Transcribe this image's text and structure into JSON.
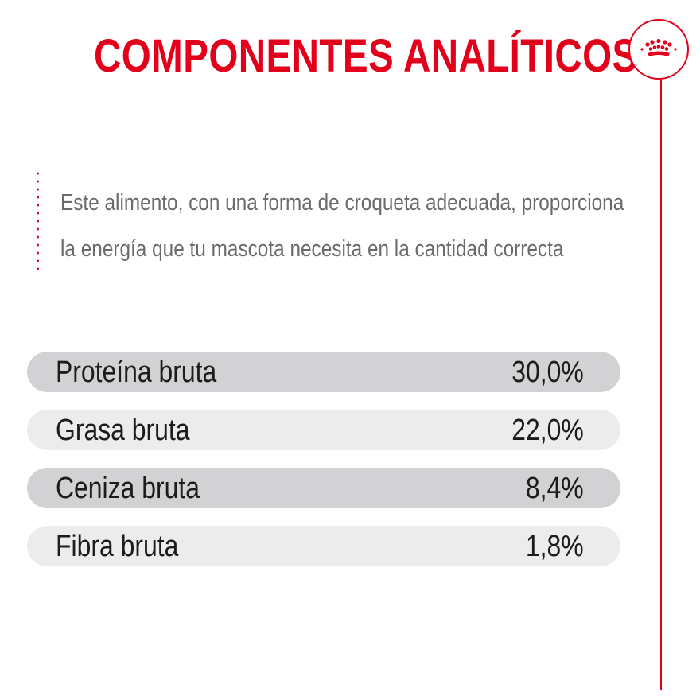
{
  "header": {
    "title": "COMPONENTES ANALÍTICOS",
    "logo_icon": "crown-icon"
  },
  "description": {
    "lines": [
      "Este alimento, con una forma de croqueta adecuada, proporciona",
      "la energía que tu mascota necesita en la cantidad correcta"
    ]
  },
  "nutrients": [
    {
      "label": "Proteína bruta",
      "value": "30,0%"
    },
    {
      "label": "Grasa bruta",
      "value": "22,0%"
    },
    {
      "label": "Ceniza bruta",
      "value": "8,4%"
    },
    {
      "label": "Fibra bruta",
      "value": "1,8%"
    }
  ],
  "colors": {
    "accent": "#e2001a",
    "row_dark": "#d2d2d4",
    "row_light": "#ececec",
    "text_dark": "#1c1c1c",
    "text_grey": "#6b6b6b"
  }
}
